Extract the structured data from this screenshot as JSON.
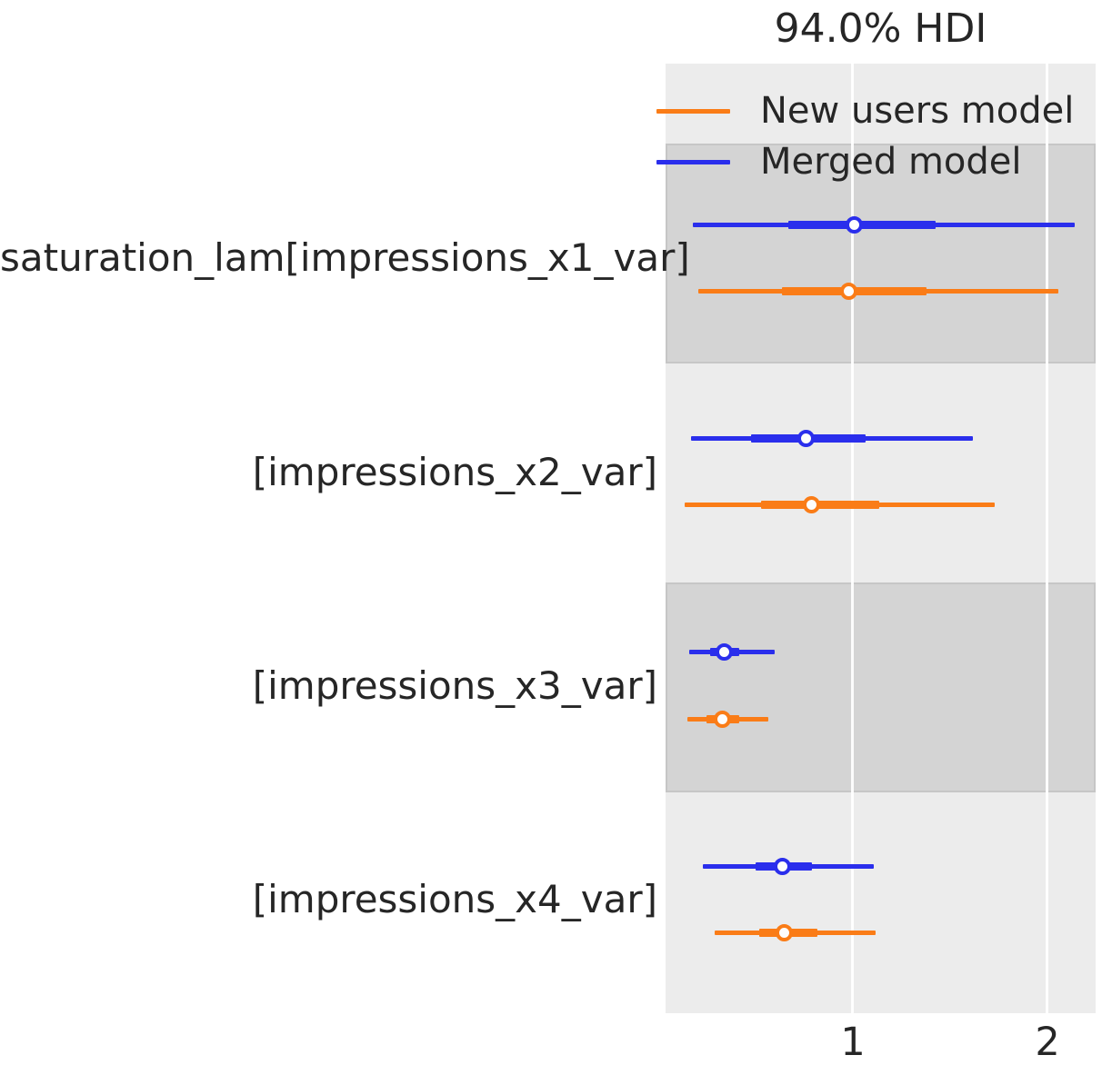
{
  "title": "94.0% HDI",
  "legend": {
    "items": [
      {
        "label": "New users model",
        "color": "#fa7c17"
      },
      {
        "label": "Merged model",
        "color": "#2a2eec"
      }
    ]
  },
  "colors": {
    "background_light_band": "#ececec",
    "background_dark_band": "#d4d4d4",
    "gridline": "#ffffff",
    "text": "#262626",
    "new_users_model": "#fa7c17",
    "merged_model": "#2a2eec"
  },
  "chart_data": {
    "type": "forest",
    "title": "94.0% HDI",
    "hdi_probability": "94.0%",
    "xlabel": "",
    "ylabel": "",
    "xlim": [
      0.04,
      2.25
    ],
    "x_ticks": [
      "1",
      "2"
    ],
    "x_tick_values": [
      1,
      2
    ],
    "grid": "vertical-white",
    "legend_position": "upper-left-inside",
    "parameters": [
      "saturation_lam[impressions_x1_var]",
      "[impressions_x2_var]",
      "[impressions_x3_var]",
      "[impressions_x4_var]"
    ],
    "series": [
      {
        "name": "Merged model",
        "color": "#2a2eec",
        "rows": [
          {
            "parameter": "saturation_lam[impressions_x1_var]",
            "hdi_low": 0.18,
            "q_low": 0.67,
            "median": 1.01,
            "q_high": 1.43,
            "hdi_high": 2.14
          },
          {
            "parameter": "[impressions_x2_var]",
            "hdi_low": 0.17,
            "q_low": 0.48,
            "median": 0.76,
            "q_high": 1.07,
            "hdi_high": 1.62
          },
          {
            "parameter": "[impressions_x3_var]",
            "hdi_low": 0.16,
            "q_low": 0.27,
            "median": 0.34,
            "q_high": 0.42,
            "hdi_high": 0.6
          },
          {
            "parameter": "[impressions_x4_var]",
            "hdi_low": 0.23,
            "q_low": 0.5,
            "median": 0.64,
            "q_high": 0.79,
            "hdi_high": 1.11
          }
        ]
      },
      {
        "name": "New users model",
        "color": "#fa7c17",
        "rows": [
          {
            "parameter": "saturation_lam[impressions_x1_var]",
            "hdi_low": 0.21,
            "q_low": 0.64,
            "median": 0.98,
            "q_high": 1.38,
            "hdi_high": 2.06
          },
          {
            "parameter": "[impressions_x2_var]",
            "hdi_low": 0.14,
            "q_low": 0.53,
            "median": 0.79,
            "q_high": 1.14,
            "hdi_high": 1.73
          },
          {
            "parameter": "[impressions_x3_var]",
            "hdi_low": 0.15,
            "q_low": 0.25,
            "median": 0.33,
            "q_high": 0.42,
            "hdi_high": 0.57
          },
          {
            "parameter": "[impressions_x4_var]",
            "hdi_low": 0.29,
            "q_low": 0.52,
            "median": 0.65,
            "q_high": 0.82,
            "hdi_high": 1.12
          }
        ]
      }
    ]
  }
}
